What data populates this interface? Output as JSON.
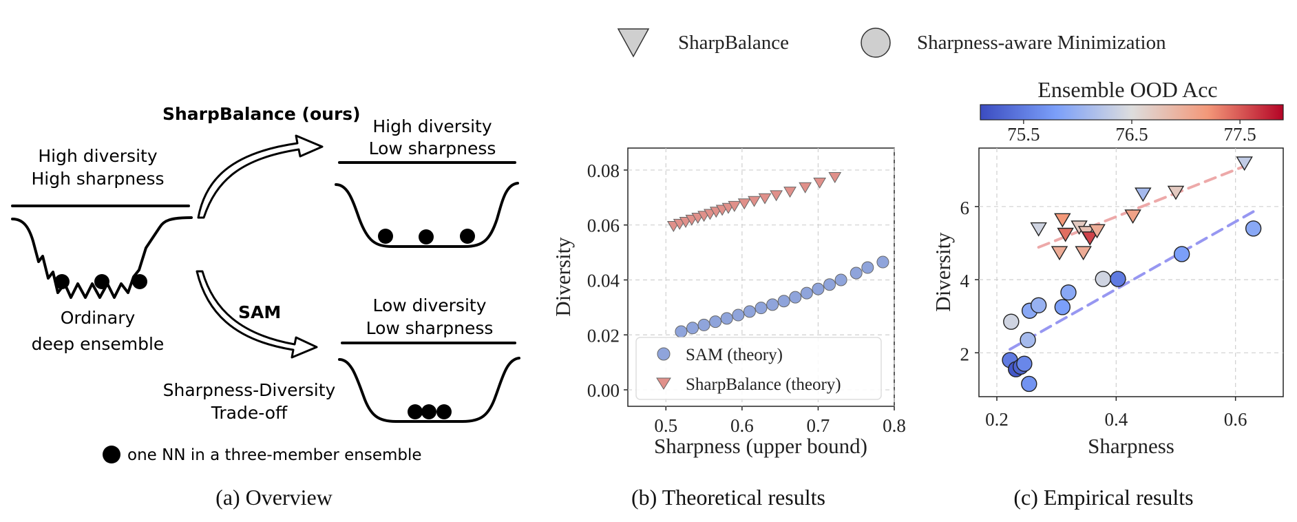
{
  "top_legend": {
    "sharpbalance_label": "SharpBalance",
    "sam_label": "Sharpness-aware Minimization"
  },
  "overview": {
    "caption": "(a) Overview",
    "label_sharpbalance": "SharpBalance (ours)",
    "label_sam": "SAM",
    "left_top_line1": "High diversity",
    "left_top_line2": "High sharpness",
    "left_bottom_line1": "Ordinary",
    "left_bottom_line2": "deep ensemble",
    "right_top_line1": "High diversity",
    "right_top_line2": "Low sharpness",
    "right_bottom_line1": "Low diversity",
    "right_bottom_line2": "Low sharpness",
    "tradeoff_line1": "Sharpness-Diversity",
    "tradeoff_line2": "Trade-off",
    "dot_legend": "one NN in a three-member ensemble"
  },
  "chart_data": [
    {
      "type": "scatter",
      "caption": "(b) Theoretical results",
      "xlabel": "Sharpness (upper bound)",
      "ylabel": "Diversity",
      "xlim": [
        0.45,
        0.8
      ],
      "ylim": [
        -0.006,
        0.088
      ],
      "xticks": [
        "0.5",
        "0.6",
        "0.7",
        "0.8"
      ],
      "yticks": [
        "0.00",
        "0.02",
        "0.04",
        "0.06",
        "0.08"
      ],
      "grid": true,
      "legend_position": "bottom-right",
      "series": [
        {
          "name": "SAM (theory)",
          "marker": "circle",
          "color": "#8fa4db",
          "x": [
            0.52,
            0.535,
            0.55,
            0.565,
            0.58,
            0.595,
            0.61,
            0.625,
            0.64,
            0.655,
            0.67,
            0.685,
            0.7,
            0.715,
            0.73,
            0.75,
            0.765,
            0.785
          ],
          "y": [
            0.0212,
            0.0225,
            0.0236,
            0.0248,
            0.026,
            0.0272,
            0.0285,
            0.0298,
            0.031,
            0.0323,
            0.0337,
            0.0352,
            0.0367,
            0.0383,
            0.04,
            0.0425,
            0.0445,
            0.0465
          ]
        },
        {
          "name": "SharpBalance (theory)",
          "marker": "triangle-down",
          "color": "#e0908a",
          "x": [
            0.51,
            0.518,
            0.526,
            0.534,
            0.542,
            0.55,
            0.558,
            0.566,
            0.574,
            0.582,
            0.59,
            0.603,
            0.616,
            0.63,
            0.645,
            0.663,
            0.683,
            0.702,
            0.722
          ],
          "y": [
            0.0597,
            0.0605,
            0.0612,
            0.062,
            0.0627,
            0.0634,
            0.0641,
            0.0649,
            0.0656,
            0.0663,
            0.067,
            0.0679,
            0.0688,
            0.0698,
            0.0709,
            0.0722,
            0.0738,
            0.0755,
            0.0775
          ]
        }
      ]
    },
    {
      "type": "scatter",
      "caption": "(c) Empirical results",
      "xlabel": "Sharpness",
      "ylabel": "Diversity",
      "xlim": [
        0.17,
        0.68
      ],
      "ylim": [
        0.8,
        7.6
      ],
      "xticks": [
        "0.2",
        "0.4",
        "0.6"
      ],
      "yticks": [
        "2",
        "4",
        "6"
      ],
      "grid": true,
      "colorbar": {
        "title": "Ensemble OOD Acc",
        "ticks": [
          "75.5",
          "76.5",
          "77.5"
        ],
        "range": [
          75.1,
          77.9
        ],
        "colormap": "coolwarm",
        "position": "top"
      },
      "series": [
        {
          "name": "Sharpness-aware Minimization",
          "marker": "circle",
          "trend_color": "#8c8cf0",
          "x": [
            0.222,
            0.232,
            0.24,
            0.246,
            0.254,
            0.252,
            0.224,
            0.255,
            0.27,
            0.32,
            0.31,
            0.378,
            0.403,
            0.51,
            0.63
          ],
          "y": [
            1.8,
            1.55,
            1.62,
            1.7,
            1.15,
            2.35,
            2.85,
            3.15,
            3.3,
            3.65,
            3.25,
            4.02,
            4.02,
            4.7,
            5.4
          ],
          "acc": [
            75.5,
            75.2,
            75.3,
            75.6,
            75.7,
            76.1,
            76.4,
            75.9,
            76.0,
            75.9,
            75.8,
            76.4,
            75.5,
            75.8,
            75.9
          ]
        },
        {
          "name": "SharpBalance",
          "marker": "triangle-down",
          "trend_color": "#eca0a0",
          "x": [
            0.27,
            0.31,
            0.305,
            0.315,
            0.338,
            0.35,
            0.356,
            0.368,
            0.345,
            0.428,
            0.445,
            0.5,
            0.615
          ],
          "y": [
            5.4,
            5.65,
            4.75,
            5.25,
            5.45,
            5.3,
            5.15,
            5.35,
            4.75,
            5.75,
            6.35,
            6.4,
            7.2
          ],
          "acc": [
            76.4,
            77.2,
            77.0,
            77.4,
            76.7,
            76.8,
            77.6,
            77.0,
            77.0,
            77.1,
            76.1,
            76.7,
            76.3
          ]
        }
      ]
    }
  ]
}
